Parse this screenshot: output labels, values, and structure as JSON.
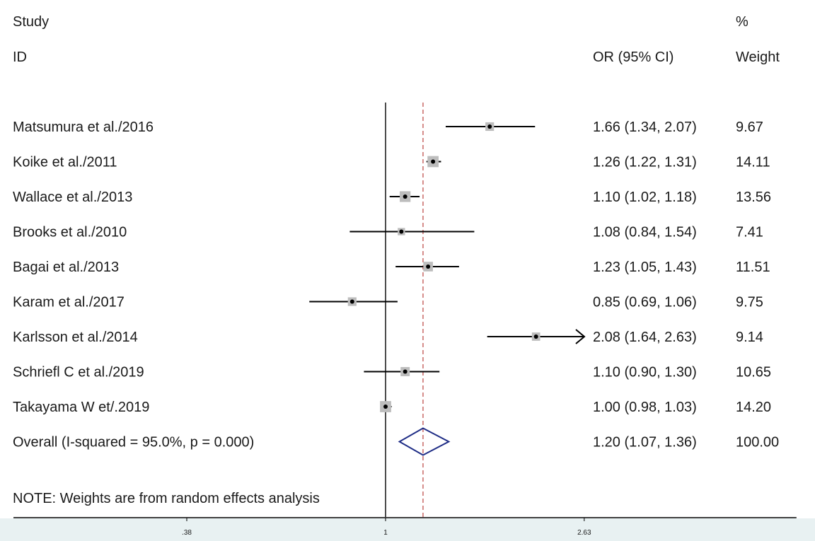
{
  "header": {
    "study_line1": "Study",
    "study_line2": "ID",
    "effect_header": "OR (95% CI)",
    "weight_line1": "%",
    "weight_line2": "Weight"
  },
  "note": "NOTE: Weights are from random effects analysis",
  "colors": {
    "text": "#1a1a1a",
    "ci_line": "#000000",
    "weight_box": "#bdbdbd",
    "overall_diamond": "#1f2d86",
    "ref_dashed_line": "#c0504d",
    "axis_band": "#e8f1f2"
  },
  "chart_data": {
    "type": "forest",
    "xscale": "log",
    "xlim": [
      0.38,
      2.63
    ],
    "xticks": [
      ".38",
      "1",
      "2.63"
    ],
    "null_line": 1,
    "overall_line": 1.2,
    "studies": [
      {
        "label": "Matsumura et al./2016",
        "or": 1.66,
        "lo": 1.34,
        "hi": 2.07,
        "ci_text": "1.66 (1.34, 2.07)",
        "weight": "9.67"
      },
      {
        "label": "Koike et al./2011",
        "or": 1.26,
        "lo": 1.22,
        "hi": 1.31,
        "ci_text": "1.26 (1.22, 1.31)",
        "weight": "14.11"
      },
      {
        "label": "Wallace et al./2013",
        "or": 1.1,
        "lo": 1.02,
        "hi": 1.18,
        "ci_text": "1.10 (1.02, 1.18)",
        "weight": "13.56"
      },
      {
        "label": "Brooks et al./2010",
        "or": 1.08,
        "lo": 0.84,
        "hi": 1.54,
        "ci_text": "1.08 (0.84, 1.54)",
        "weight": "7.41"
      },
      {
        "label": "Bagai et al./2013",
        "or": 1.23,
        "lo": 1.05,
        "hi": 1.43,
        "ci_text": "1.23 (1.05, 1.43)",
        "weight": "11.51"
      },
      {
        "label": "Karam et al./2017",
        "or": 0.85,
        "lo": 0.69,
        "hi": 1.06,
        "ci_text": "0.85 (0.69, 1.06)",
        "weight": "9.75"
      },
      {
        "label": "Karlsson et al./2014",
        "or": 2.08,
        "lo": 1.64,
        "hi": 2.63,
        "ci_text": "2.08 (1.64, 2.63)",
        "weight": "9.14",
        "arrow_right": true
      },
      {
        "label": "Schriefl C et al./2019",
        "or": 1.1,
        "lo": 0.9,
        "hi": 1.3,
        "ci_text": "1.10 (0.90, 1.30)",
        "weight": "10.65"
      },
      {
        "label": "Takayama W et/.2019",
        "or": 1.0,
        "lo": 0.98,
        "hi": 1.03,
        "ci_text": "1.00 (0.98, 1.03)",
        "weight": "14.20"
      }
    ],
    "overall": {
      "label": "Overall  (I-squared = 95.0%, p = 0.000)",
      "or": 1.2,
      "lo": 1.07,
      "hi": 1.36,
      "ci_text": "1.20 (1.07, 1.36)",
      "weight": "100.00"
    }
  }
}
